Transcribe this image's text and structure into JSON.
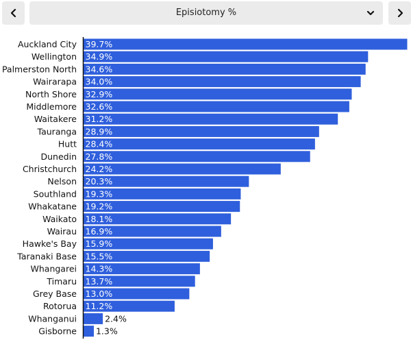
{
  "header": {
    "selected_metric": "Episiotomy %",
    "prev_icon": "chevron-left-icon",
    "next_icon": "chevron-right-icon",
    "dropdown_icon": "chevron-down-icon"
  },
  "colors": {
    "bar": "#2f5fdc",
    "axis": "#111111",
    "label_inside": "#ffffff",
    "label_outside": "#111111"
  },
  "chart_data": {
    "type": "bar",
    "orientation": "horizontal",
    "categories": [
      "Auckland City",
      "Wellington",
      "Palmerston North",
      "Wairarapa",
      "North Shore",
      "Middlemore",
      "Waitakere",
      "Tauranga",
      "Hutt",
      "Dunedin",
      "Christchurch",
      "Nelson",
      "Southland",
      "Whakatane",
      "Waikato",
      "Wairau",
      "Hawke's Bay",
      "Taranaki Base",
      "Whangarei",
      "Timaru",
      "Grey Base",
      "Rotorua",
      "Whanganui",
      "Gisborne"
    ],
    "values": [
      39.7,
      34.9,
      34.6,
      34.0,
      32.9,
      32.6,
      31.2,
      28.9,
      28.4,
      27.8,
      24.2,
      20.3,
      19.3,
      19.2,
      18.1,
      16.9,
      15.9,
      15.5,
      14.3,
      13.7,
      13.0,
      11.2,
      2.4,
      1.3
    ],
    "value_labels": [
      "39.7%",
      "34.9%",
      "34.6%",
      "34.0%",
      "32.9%",
      "32.6%",
      "31.2%",
      "28.9%",
      "28.4%",
      "27.8%",
      "24.2%",
      "20.3%",
      "19.3%",
      "19.2%",
      "18.1%",
      "16.9%",
      "15.9%",
      "15.5%",
      "14.3%",
      "13.7%",
      "13.0%",
      "11.2%",
      "2.4%",
      "1.3%"
    ],
    "xlim": [
      0,
      39.7
    ],
    "title": "",
    "xlabel": "",
    "ylabel": "",
    "grid": false,
    "legend": "none"
  }
}
